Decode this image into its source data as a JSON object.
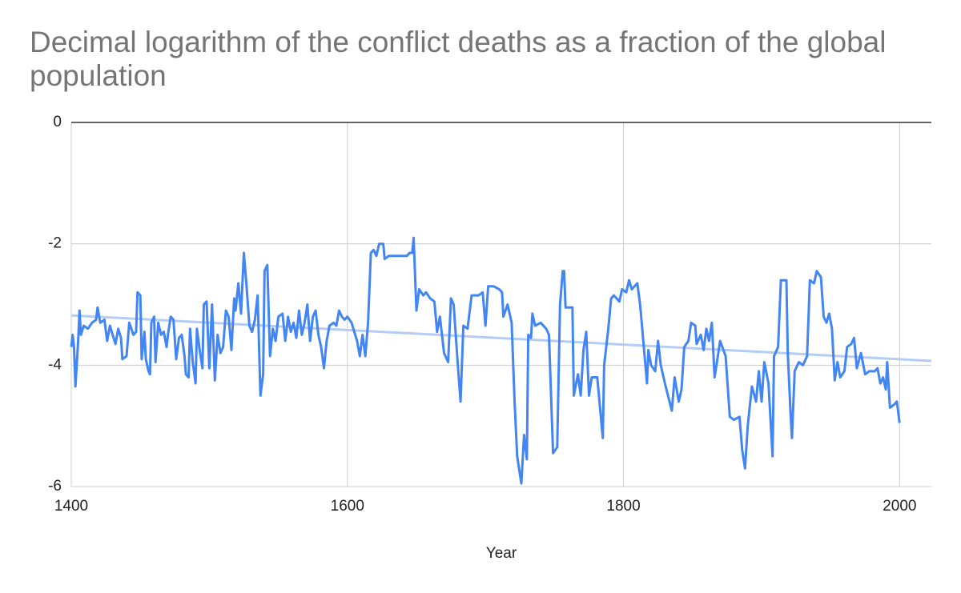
{
  "chart_data": {
    "type": "line",
    "title": "Decimal logarithm of the conflict deaths as a fraction of the global population",
    "xlabel": "Year",
    "xlim": [
      1400,
      2023
    ],
    "xticks": [
      1400,
      1600,
      1800,
      2000
    ],
    "ylim": [
      -6,
      0
    ],
    "yticks": [
      -6,
      -4,
      -2,
      0
    ],
    "grid": true,
    "series": [
      {
        "color": "#4285f4",
        "x": [
          1400,
          1401,
          1402,
          1403,
          1405,
          1406,
          1407,
          1409,
          1412,
          1415,
          1418,
          1419,
          1421,
          1424,
          1426,
          1428,
          1430,
          1432,
          1434,
          1436,
          1437,
          1440,
          1442,
          1445,
          1447,
          1448,
          1450,
          1451,
          1453,
          1454,
          1456,
          1457,
          1458,
          1460,
          1461,
          1463,
          1465,
          1467,
          1469,
          1470,
          1472,
          1474,
          1476,
          1478,
          1480,
          1482,
          1483,
          1485,
          1486,
          1488,
          1490,
          1491,
          1493,
          1495,
          1496,
          1498,
          1500,
          1502,
          1504,
          1506,
          1508,
          1510,
          1512,
          1514,
          1516,
          1518,
          1519,
          1521,
          1523,
          1525,
          1527,
          1529,
          1531,
          1533,
          1535,
          1537,
          1539,
          1540,
          1542,
          1544,
          1546,
          1548,
          1550,
          1553,
          1555,
          1557,
          1559,
          1561,
          1563,
          1565,
          1567,
          1569,
          1571,
          1573,
          1575,
          1577,
          1579,
          1581,
          1583,
          1585,
          1587,
          1590,
          1592,
          1594,
          1596,
          1598,
          1600,
          1603,
          1605,
          1607,
          1609,
          1611,
          1613,
          1615,
          1617,
          1619,
          1621,
          1623,
          1626,
          1627,
          1630,
          1635,
          1640,
          1643,
          1645,
          1647,
          1648,
          1650,
          1652,
          1655,
          1657,
          1660,
          1663,
          1665,
          1667,
          1670,
          1673,
          1675,
          1677,
          1680,
          1682,
          1684,
          1687,
          1690,
          1695,
          1698,
          1700,
          1702,
          1706,
          1710,
          1712,
          1713,
          1716,
          1719,
          1721,
          1723,
          1726,
          1728,
          1730,
          1731,
          1733,
          1734,
          1736,
          1740,
          1744,
          1746,
          1749,
          1752,
          1754,
          1756,
          1757,
          1758,
          1763,
          1764,
          1767,
          1769,
          1771,
          1773,
          1775,
          1777,
          1781,
          1785,
          1786,
          1789,
          1791,
          1793,
          1797,
          1799,
          1802,
          1804,
          1806,
          1810,
          1812,
          1817,
          1818,
          1820,
          1823,
          1825,
          1827,
          1830,
          1835,
          1837,
          1840,
          1842,
          1844,
          1847,
          1849,
          1852,
          1853,
          1856,
          1858,
          1860,
          1862,
          1864,
          1866,
          1868,
          1870,
          1874,
          1877,
          1880,
          1884,
          1886,
          1888,
          1890,
          1893,
          1896,
          1898,
          1900,
          1902,
          1905,
          1908,
          1909,
          1912,
          1914,
          1918,
          1919,
          1921,
          1922,
          1924,
          1927,
          1930,
          1933,
          1935,
          1938,
          1940,
          1943,
          1945,
          1947,
          1949,
          1951,
          1953,
          1955,
          1957,
          1960,
          1962,
          1965,
          1967,
          1969,
          1972,
          1975,
          1978,
          1982,
          1984,
          1986,
          1988,
          1990,
          1991,
          1993,
          1996,
          1998,
          2000
        ],
        "values": [
          -3.7,
          -3.5,
          -3.7,
          -4.35,
          -3.6,
          -3.1,
          -3.5,
          -3.35,
          -3.4,
          -3.3,
          -3.25,
          -3.05,
          -3.3,
          -3.25,
          -3.6,
          -3.35,
          -3.5,
          -3.65,
          -3.4,
          -3.55,
          -3.9,
          -3.85,
          -3.3,
          -3.5,
          -3.45,
          -2.8,
          -2.85,
          -3.9,
          -3.45,
          -3.9,
          -4.1,
          -4.15,
          -3.3,
          -3.2,
          -3.95,
          -3.3,
          -3.5,
          -3.45,
          -3.7,
          -3.5,
          -3.2,
          -3.25,
          -3.9,
          -3.55,
          -3.5,
          -3.85,
          -4.15,
          -4.2,
          -3.4,
          -3.95,
          -4.3,
          -3.4,
          -3.75,
          -4.05,
          -3.0,
          -2.95,
          -4.05,
          -3.0,
          -4.25,
          -3.5,
          -3.8,
          -3.7,
          -3.1,
          -3.2,
          -3.75,
          -2.9,
          -3.1,
          -2.65,
          -3.15,
          -2.15,
          -2.7,
          -3.35,
          -3.45,
          -3.25,
          -2.85,
          -4.5,
          -4.15,
          -2.45,
          -2.35,
          -3.85,
          -3.4,
          -3.6,
          -3.2,
          -3.15,
          -3.6,
          -3.2,
          -3.45,
          -3.3,
          -3.55,
          -3.1,
          -3.5,
          -3.3,
          -3.0,
          -3.6,
          -3.2,
          -3.1,
          -3.5,
          -3.7,
          -4.05,
          -3.6,
          -3.35,
          -3.3,
          -3.35,
          -3.1,
          -3.2,
          -3.25,
          -3.2,
          -3.3,
          -3.45,
          -3.6,
          -3.85,
          -3.5,
          -3.85,
          -3.3,
          -2.15,
          -2.1,
          -2.2,
          -2.0,
          -2.0,
          -2.25,
          -2.2,
          -2.2,
          -2.2,
          -2.2,
          -2.15,
          -2.15,
          -1.9,
          -3.1,
          -2.75,
          -2.85,
          -2.8,
          -2.9,
          -2.95,
          -3.45,
          -3.2,
          -3.8,
          -3.95,
          -2.9,
          -3.0,
          -4.0,
          -4.6,
          -3.35,
          -3.4,
          -2.85,
          -2.85,
          -2.8,
          -3.35,
          -2.7,
          -2.7,
          -2.75,
          -2.8,
          -3.2,
          -3.0,
          -3.3,
          -4.55,
          -5.5,
          -5.95,
          -5.15,
          -5.55,
          -3.5,
          -3.55,
          -3.15,
          -3.35,
          -3.3,
          -3.4,
          -3.5,
          -5.45,
          -5.35,
          -3.0,
          -2.45,
          -2.45,
          -3.05,
          -3.05,
          -4.5,
          -4.15,
          -4.5,
          -3.75,
          -3.45,
          -4.5,
          -4.2,
          -4.2,
          -5.2,
          -4.0,
          -3.4,
          -2.9,
          -2.85,
          -2.95,
          -2.75,
          -2.8,
          -2.6,
          -2.75,
          -2.65,
          -3.0,
          -4.3,
          -3.75,
          -4.0,
          -4.1,
          -3.6,
          -4.0,
          -4.3,
          -4.75,
          -4.2,
          -4.6,
          -4.4,
          -3.7,
          -3.6,
          -3.3,
          -3.35,
          -3.65,
          -3.5,
          -3.75,
          -3.4,
          -3.6,
          -3.3,
          -4.2,
          -3.9,
          -3.6,
          -3.85,
          -4.85,
          -4.9,
          -4.85,
          -5.4,
          -5.7,
          -5.0,
          -4.35,
          -4.6,
          -4.1,
          -4.6,
          -3.95,
          -4.3,
          -5.5,
          -3.85,
          -3.7,
          -2.6,
          -2.6,
          -3.8,
          -4.8,
          -5.2,
          -4.1,
          -3.95,
          -4.0,
          -3.85,
          -2.6,
          -2.65,
          -2.45,
          -2.55,
          -3.2,
          -3.3,
          -3.15,
          -3.4,
          -4.25,
          -3.95,
          -4.2,
          -4.1,
          -3.7,
          -3.65,
          -3.55,
          -4.05,
          -3.8,
          -4.15,
          -4.1,
          -4.1,
          -4.05,
          -4.3,
          -4.2,
          -4.4,
          -3.95,
          -4.7,
          -4.65,
          -4.6,
          -4.95
        ]
      },
      {
        "color": "#b3cdf7",
        "x": [
          1400,
          2023
        ],
        "values": [
          -3.18,
          -3.93
        ]
      }
    ]
  }
}
